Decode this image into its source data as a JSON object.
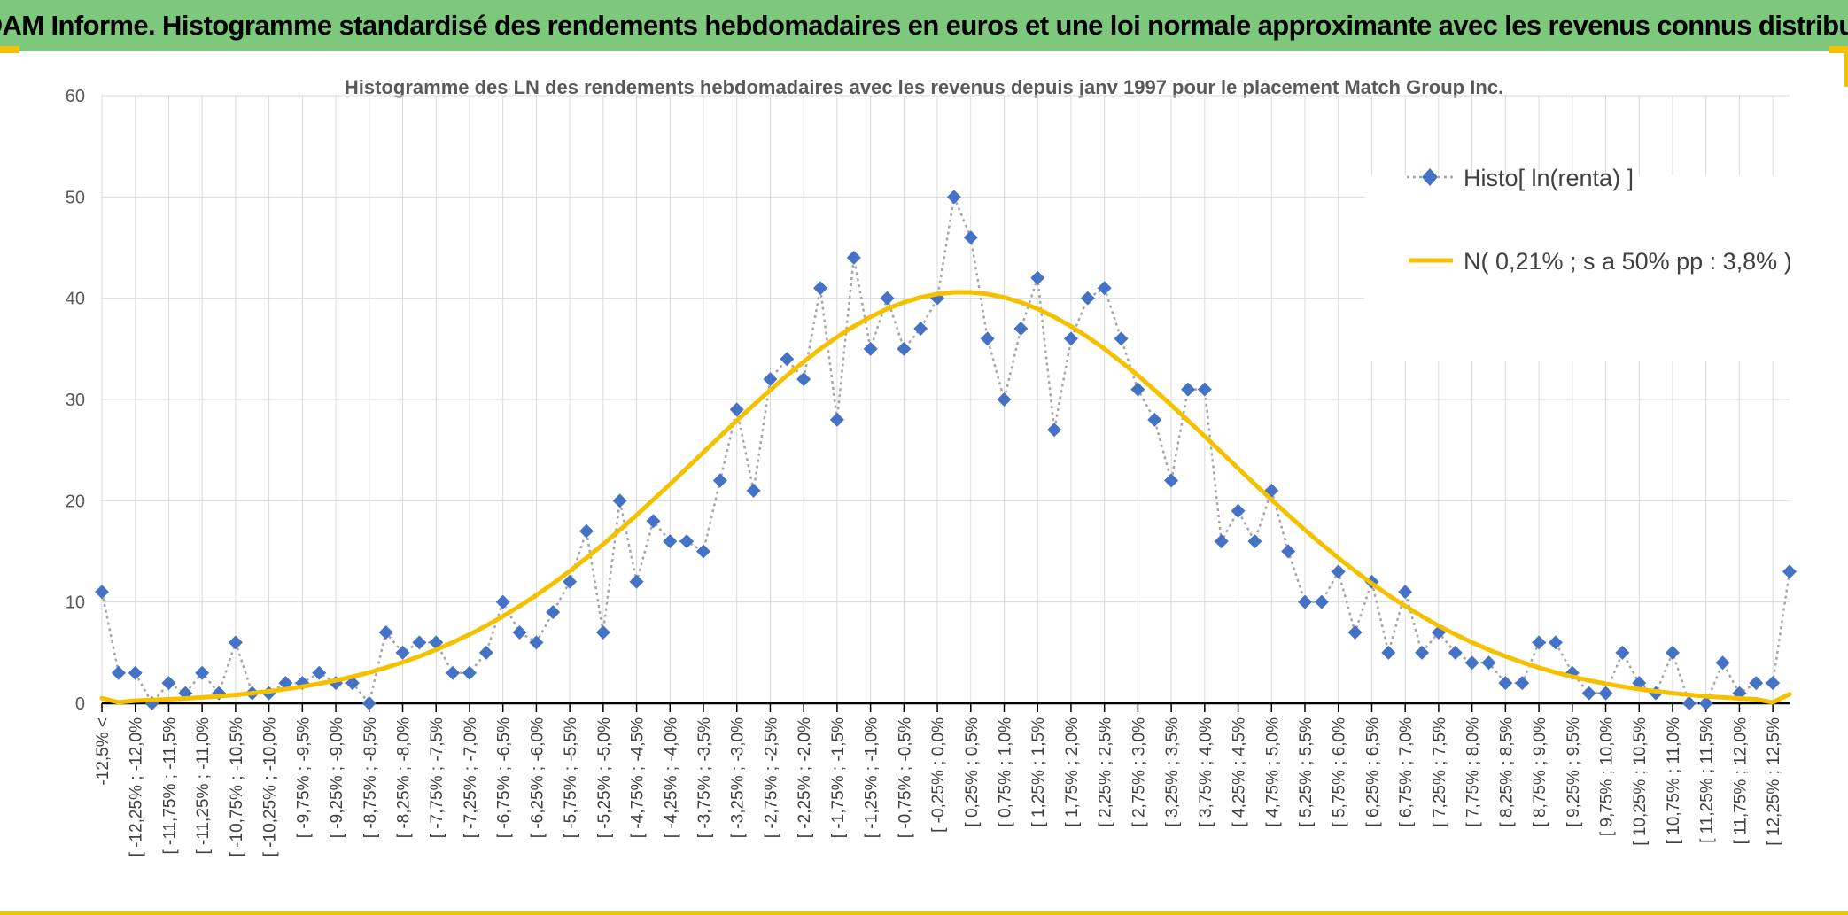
{
  "banner": {
    "title": "ADAM Informe. Histogramme standardisé des rendements hebdomadaires en euros et une loi normale approximante avec les revenus connus distribués"
  },
  "colors": {
    "banner_bg": "#7ec87e",
    "accent": "#f2c200",
    "histo": "#4472c4",
    "normal": "#f5c000",
    "dotted_line": "#a6a6a6"
  },
  "chart_data": {
    "type": "line",
    "title": "Histogramme des LN des rendements hebdomadaires avec les revenus depuis janv 1997 pour le placement Match Group Inc.",
    "xlabel": "",
    "ylabel": "",
    "ylim": [
      0,
      60
    ],
    "yticks": [
      0,
      10,
      20,
      30,
      40,
      50,
      60
    ],
    "grid": true,
    "legend_position": "top-right",
    "x_tick_labels": [
      "-12,5% <",
      "[ -12,25% ; -12,0%",
      "[ -11,75% ; -11,5%",
      "[ -11,25% ; -11,0%",
      "[ -10,75% ; -10,5%",
      "[ -10,25% ; -10,0%",
      "[ -9,75% ; -9,5%",
      "[ -9,25% ; -9,0%",
      "[ -8,75% ; -8,5%",
      "[ -8,25% ; -8,0%",
      "[ -7,75% ; -7,5%",
      "[ -7,25% ; -7,0%",
      "[ -6,75% ; -6,5%",
      "[ -6,25% ; -6,0%",
      "[ -5,75% ; -5,5%",
      "[ -5,25% ; -5,0%",
      "[ -4,75% ; -4,5%",
      "[ -4,25% ; -4,0%",
      "[ -3,75% ; -3,5%",
      "[ -3,25% ; -3,0%",
      "[ -2,75% ; -2,5%",
      "[ -2,25% ; -2,0%",
      "[ -1,75% ; -1,5%",
      "[ -1,25% ; -1,0%",
      "[ -0,75% ; -0,5%",
      "[ -0,25% ; 0,0%",
      "[ 0,25% ; 0,5%",
      "[ 0,75% ; 1,0%",
      "[ 1,25% ; 1,5%",
      "[ 1,75% ; 2,0%",
      "[ 2,25% ; 2,5%",
      "[ 2,75% ; 3,0%",
      "[ 3,25% ; 3,5%",
      "[ 3,75% ; 4,0%",
      "[ 4,25% ; 4,5%",
      "[ 4,75% ; 5,0%",
      "[ 5,25% ; 5,5%",
      "[ 5,75% ; 6,0%",
      "[ 6,25% ; 6,5%",
      "[ 6,75% ; 7,0%",
      "[ 7,25% ; 7,5%",
      "[ 7,75% ; 8,0%",
      "[ 8,25% ; 8,5%",
      "[ 8,75% ; 9,0%",
      "[ 9,25% ; 9,5%",
      "[ 9,75% ; 10,0%",
      "[ 10,25% ; 10,5%",
      "[ 10,75% ; 11,0%",
      "[ 11,25% ; 11,5%",
      "[ 11,75% ; 12,0%",
      "[ 12,25% ; 12,5%"
    ],
    "series": [
      {
        "name": "Histo[ ln(renta) ]",
        "style": "dotted-line-diamond",
        "values": [
          11,
          3,
          3,
          0,
          2,
          1,
          3,
          1,
          6,
          1,
          1,
          2,
          2,
          3,
          2,
          2,
          0,
          7,
          5,
          6,
          6,
          3,
          3,
          5,
          10,
          7,
          6,
          9,
          12,
          17,
          7,
          20,
          12,
          18,
          16,
          16,
          15,
          22,
          29,
          21,
          32,
          34,
          32,
          41,
          28,
          44,
          35,
          40,
          35,
          37,
          40,
          50,
          46,
          36,
          30,
          37,
          42,
          27,
          36,
          40,
          41,
          36,
          31,
          28,
          22,
          31,
          31,
          16,
          19,
          16,
          21,
          15,
          10,
          10,
          13,
          7,
          12,
          5,
          11,
          5,
          7,
          5,
          4,
          4,
          2,
          2,
          6,
          6,
          3,
          1,
          1,
          5,
          2,
          1,
          5,
          0,
          0,
          4,
          1,
          2,
          2,
          13
        ]
      },
      {
        "name": "N( 0,21% ; s a 50% pp : 3,8% )",
        "style": "solid-line",
        "mean_index": 51.5,
        "sd_index": 15.6,
        "peak": 40.6,
        "tail_values_first": [
          0.5,
          0.1
        ],
        "tail_values_last": [
          0.1,
          0.9
        ]
      }
    ]
  }
}
